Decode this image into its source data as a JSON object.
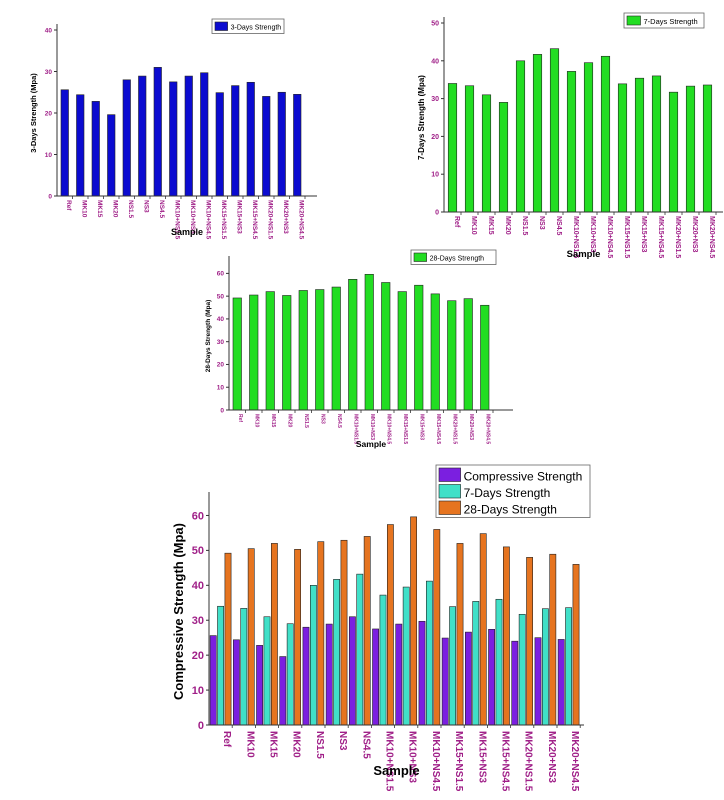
{
  "chart_data": [
    {
      "type": "bar",
      "categories": [
        "Ref",
        "MK10",
        "MK15",
        "MK20",
        "NS1.5",
        "NS3",
        "NS4.5",
        "MK10+NS1.5",
        "MK10+NS3",
        "MK10+NS4.5",
        "MK15+NS1.5",
        "MK15+NS3",
        "MK15+NS4.5",
        "MK20+NS1.5",
        "MK20+NS3",
        "MK20+NS4.5"
      ],
      "series": [
        {
          "name": "3-Days Strength",
          "color": "#0b0bd0",
          "values": [
            25.6,
            24.4,
            22.8,
            19.6,
            28.0,
            28.9,
            31.0,
            27.5,
            28.9,
            29.7,
            24.9,
            26.6,
            27.4,
            24.0,
            25.0,
            24.5
          ]
        }
      ],
      "ylabel": "3-Days Strength (Mpa)",
      "xlabel": "Sample",
      "ylim": [
        0,
        40
      ],
      "yticks": [
        0,
        10,
        20,
        30,
        40
      ],
      "legend": "top-right",
      "grid": false
    },
    {
      "type": "bar",
      "categories": [
        "Ref",
        "MK10",
        "MK15",
        "MK20",
        "NS1.5",
        "NS3",
        "NS4.5",
        "MK10+NS1.5",
        "MK10+NS3",
        "MK10+NS4.5",
        "MK15+NS1.5",
        "MK15+NS3",
        "MK15+NS4.5",
        "MK20+NS1.5",
        "MK20+NS3",
        "MK20+NS4.5"
      ],
      "series": [
        {
          "name": "7-Days Strength",
          "color": "#22dd22",
          "values": [
            34.0,
            33.4,
            31.0,
            29.0,
            40.0,
            41.7,
            43.2,
            37.2,
            39.5,
            41.2,
            33.9,
            35.4,
            36.0,
            31.7,
            33.3,
            33.6
          ]
        }
      ],
      "ylabel": "7-Days Strength (Mpa)",
      "xlabel": "Sample",
      "ylim": [
        0,
        50
      ],
      "yticks": [
        0,
        10,
        20,
        30,
        40,
        50
      ],
      "legend": "top-right",
      "grid": false
    },
    {
      "type": "bar",
      "categories": [
        "Ref",
        "MK10",
        "MK15",
        "MK20",
        "NS1.5",
        "NS3",
        "NS4.5",
        "MK10+NS1.5",
        "MK10+NS3",
        "MK10+NS4.5",
        "MK15+NS1.5",
        "MK15+NS3",
        "MK15+NS4.5",
        "MK20+NS1.5",
        "MK20+NS3",
        "MK20+NS4.5"
      ],
      "series": [
        {
          "name": "28-Days Strength",
          "color": "#22dd22",
          "values": [
            49.2,
            50.5,
            52.0,
            50.3,
            52.5,
            52.9,
            54.0,
            57.4,
            59.6,
            56.0,
            52.0,
            54.8,
            51.0,
            48.0,
            48.9,
            46.0
          ]
        }
      ],
      "ylabel": "28-Days Strength (Mpa)",
      "xlabel": "Sample",
      "ylim": [
        0,
        65
      ],
      "yticks": [
        0,
        10,
        20,
        30,
        40,
        50,
        60
      ],
      "legend": "top-right",
      "grid": false
    },
    {
      "type": "bar",
      "categories": [
        "Ref",
        "MK10",
        "MK15",
        "MK20",
        "NS1.5",
        "NS3",
        "NS4.5",
        "MK10+NS1.5",
        "MK10+NS3",
        "MK10+NS4.5",
        "MK15+NS1.5",
        "MK15+NS3",
        "MK15+NS4.5",
        "MK20+NS1.5",
        "MK20+NS3",
        "MK20+NS4.5"
      ],
      "series": [
        {
          "name": "Compressive Strength",
          "color": "#7b1fe0",
          "values": [
            25.6,
            24.4,
            22.8,
            19.6,
            28.0,
            28.9,
            31.0,
            27.5,
            28.9,
            29.7,
            24.9,
            26.6,
            27.4,
            24.0,
            25.0,
            24.5
          ]
        },
        {
          "name": "7-Days Strength",
          "color": "#40e0c8",
          "values": [
            34.0,
            33.4,
            31.0,
            29.0,
            40.0,
            41.7,
            43.2,
            37.2,
            39.5,
            41.2,
            33.9,
            35.4,
            36.0,
            31.7,
            33.3,
            33.6
          ]
        },
        {
          "name": "28-Days Strength",
          "color": "#e6741f",
          "values": [
            49.2,
            50.5,
            52.0,
            50.3,
            52.5,
            52.9,
            54.0,
            57.4,
            59.6,
            56.0,
            52.0,
            54.8,
            51.0,
            48.0,
            48.9,
            46.0
          ]
        }
      ],
      "ylabel": "Compressive Strength (Mpa)",
      "xlabel": "Sample",
      "ylim": [
        0,
        65
      ],
      "yticks": [
        0,
        10,
        20,
        30,
        40,
        50,
        60
      ],
      "legend": "top-right",
      "grid": false
    }
  ]
}
